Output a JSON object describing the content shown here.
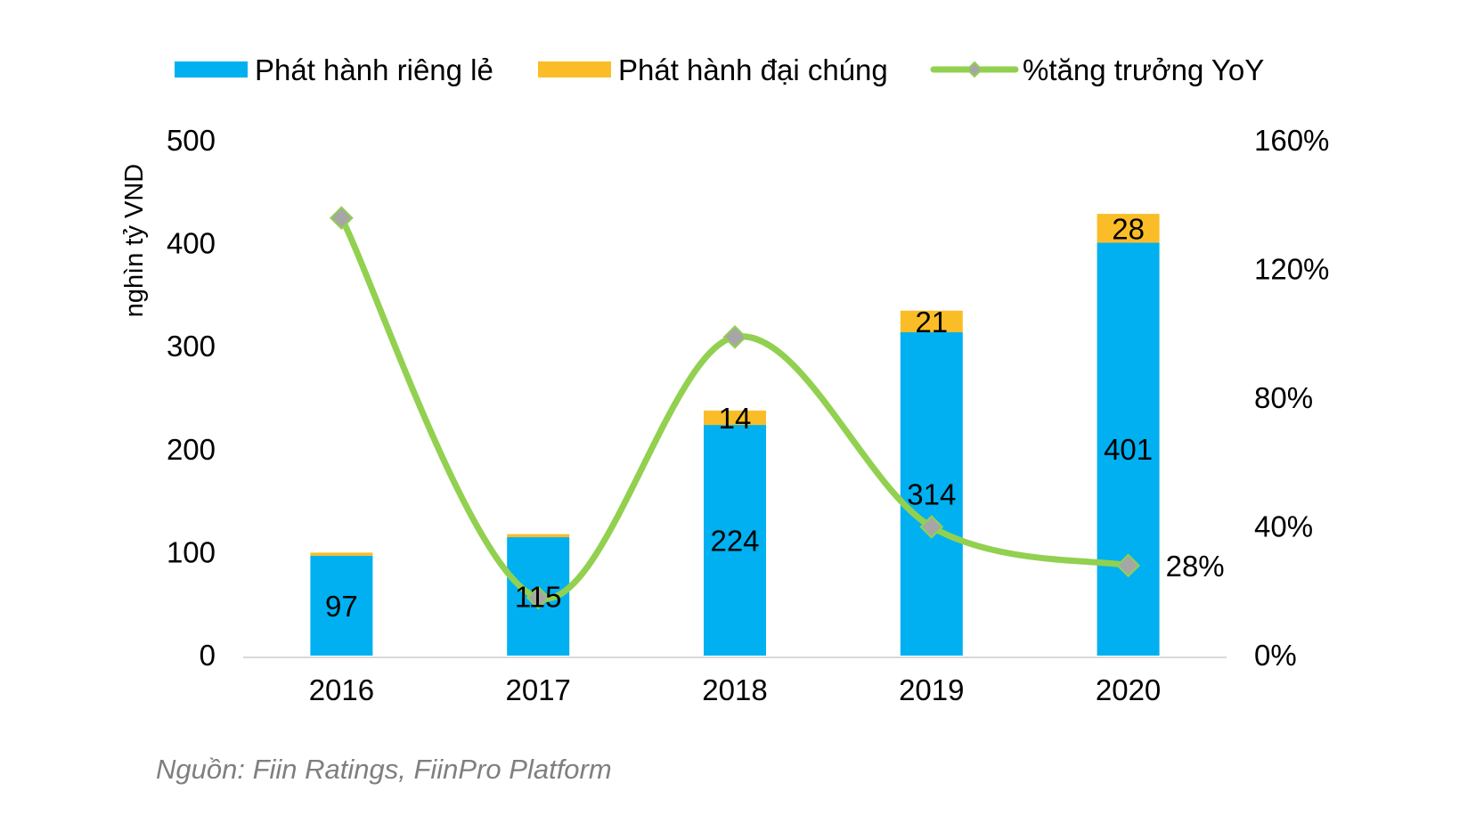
{
  "chart_data": {
    "type": "bar",
    "stacked": true,
    "categories": [
      "2016",
      "2017",
      "2018",
      "2019",
      "2020"
    ],
    "series": [
      {
        "name": "Phát hành riêng lẻ",
        "kind": "bar",
        "axis": "left",
        "color": "#00b0f0",
        "values": [
          97,
          115,
          224,
          314,
          401
        ],
        "labels": [
          "97",
          "115",
          "224",
          "314",
          "401"
        ]
      },
      {
        "name": "Phát hành đại chúng",
        "kind": "bar",
        "axis": "left",
        "color": "#fbbd27",
        "values": [
          3,
          3,
          14,
          21,
          28
        ],
        "labels": [
          "",
          "",
          "14",
          "21",
          "28"
        ]
      },
      {
        "name": "%tăng trưởng YoY",
        "kind": "line",
        "axis": "right",
        "color": "#92d050",
        "marker_color": "#a6a6a6",
        "values": [
          136,
          18,
          99,
          40,
          28
        ],
        "labels": [
          "",
          "",
          "",
          "",
          "28%"
        ]
      }
    ],
    "ylabel": "nghìn tỷ VND",
    "ylim": [
      0,
      500
    ],
    "yticks": [
      "0",
      "100",
      "200",
      "300",
      "400",
      "500"
    ],
    "y2lim": [
      0,
      160
    ],
    "y2ticks": [
      "0%",
      "40%",
      "80%",
      "120%",
      "160%"
    ],
    "grid": false,
    "legend": "top"
  },
  "source": "Nguồn: Fiin Ratings, FiinPro Platform"
}
